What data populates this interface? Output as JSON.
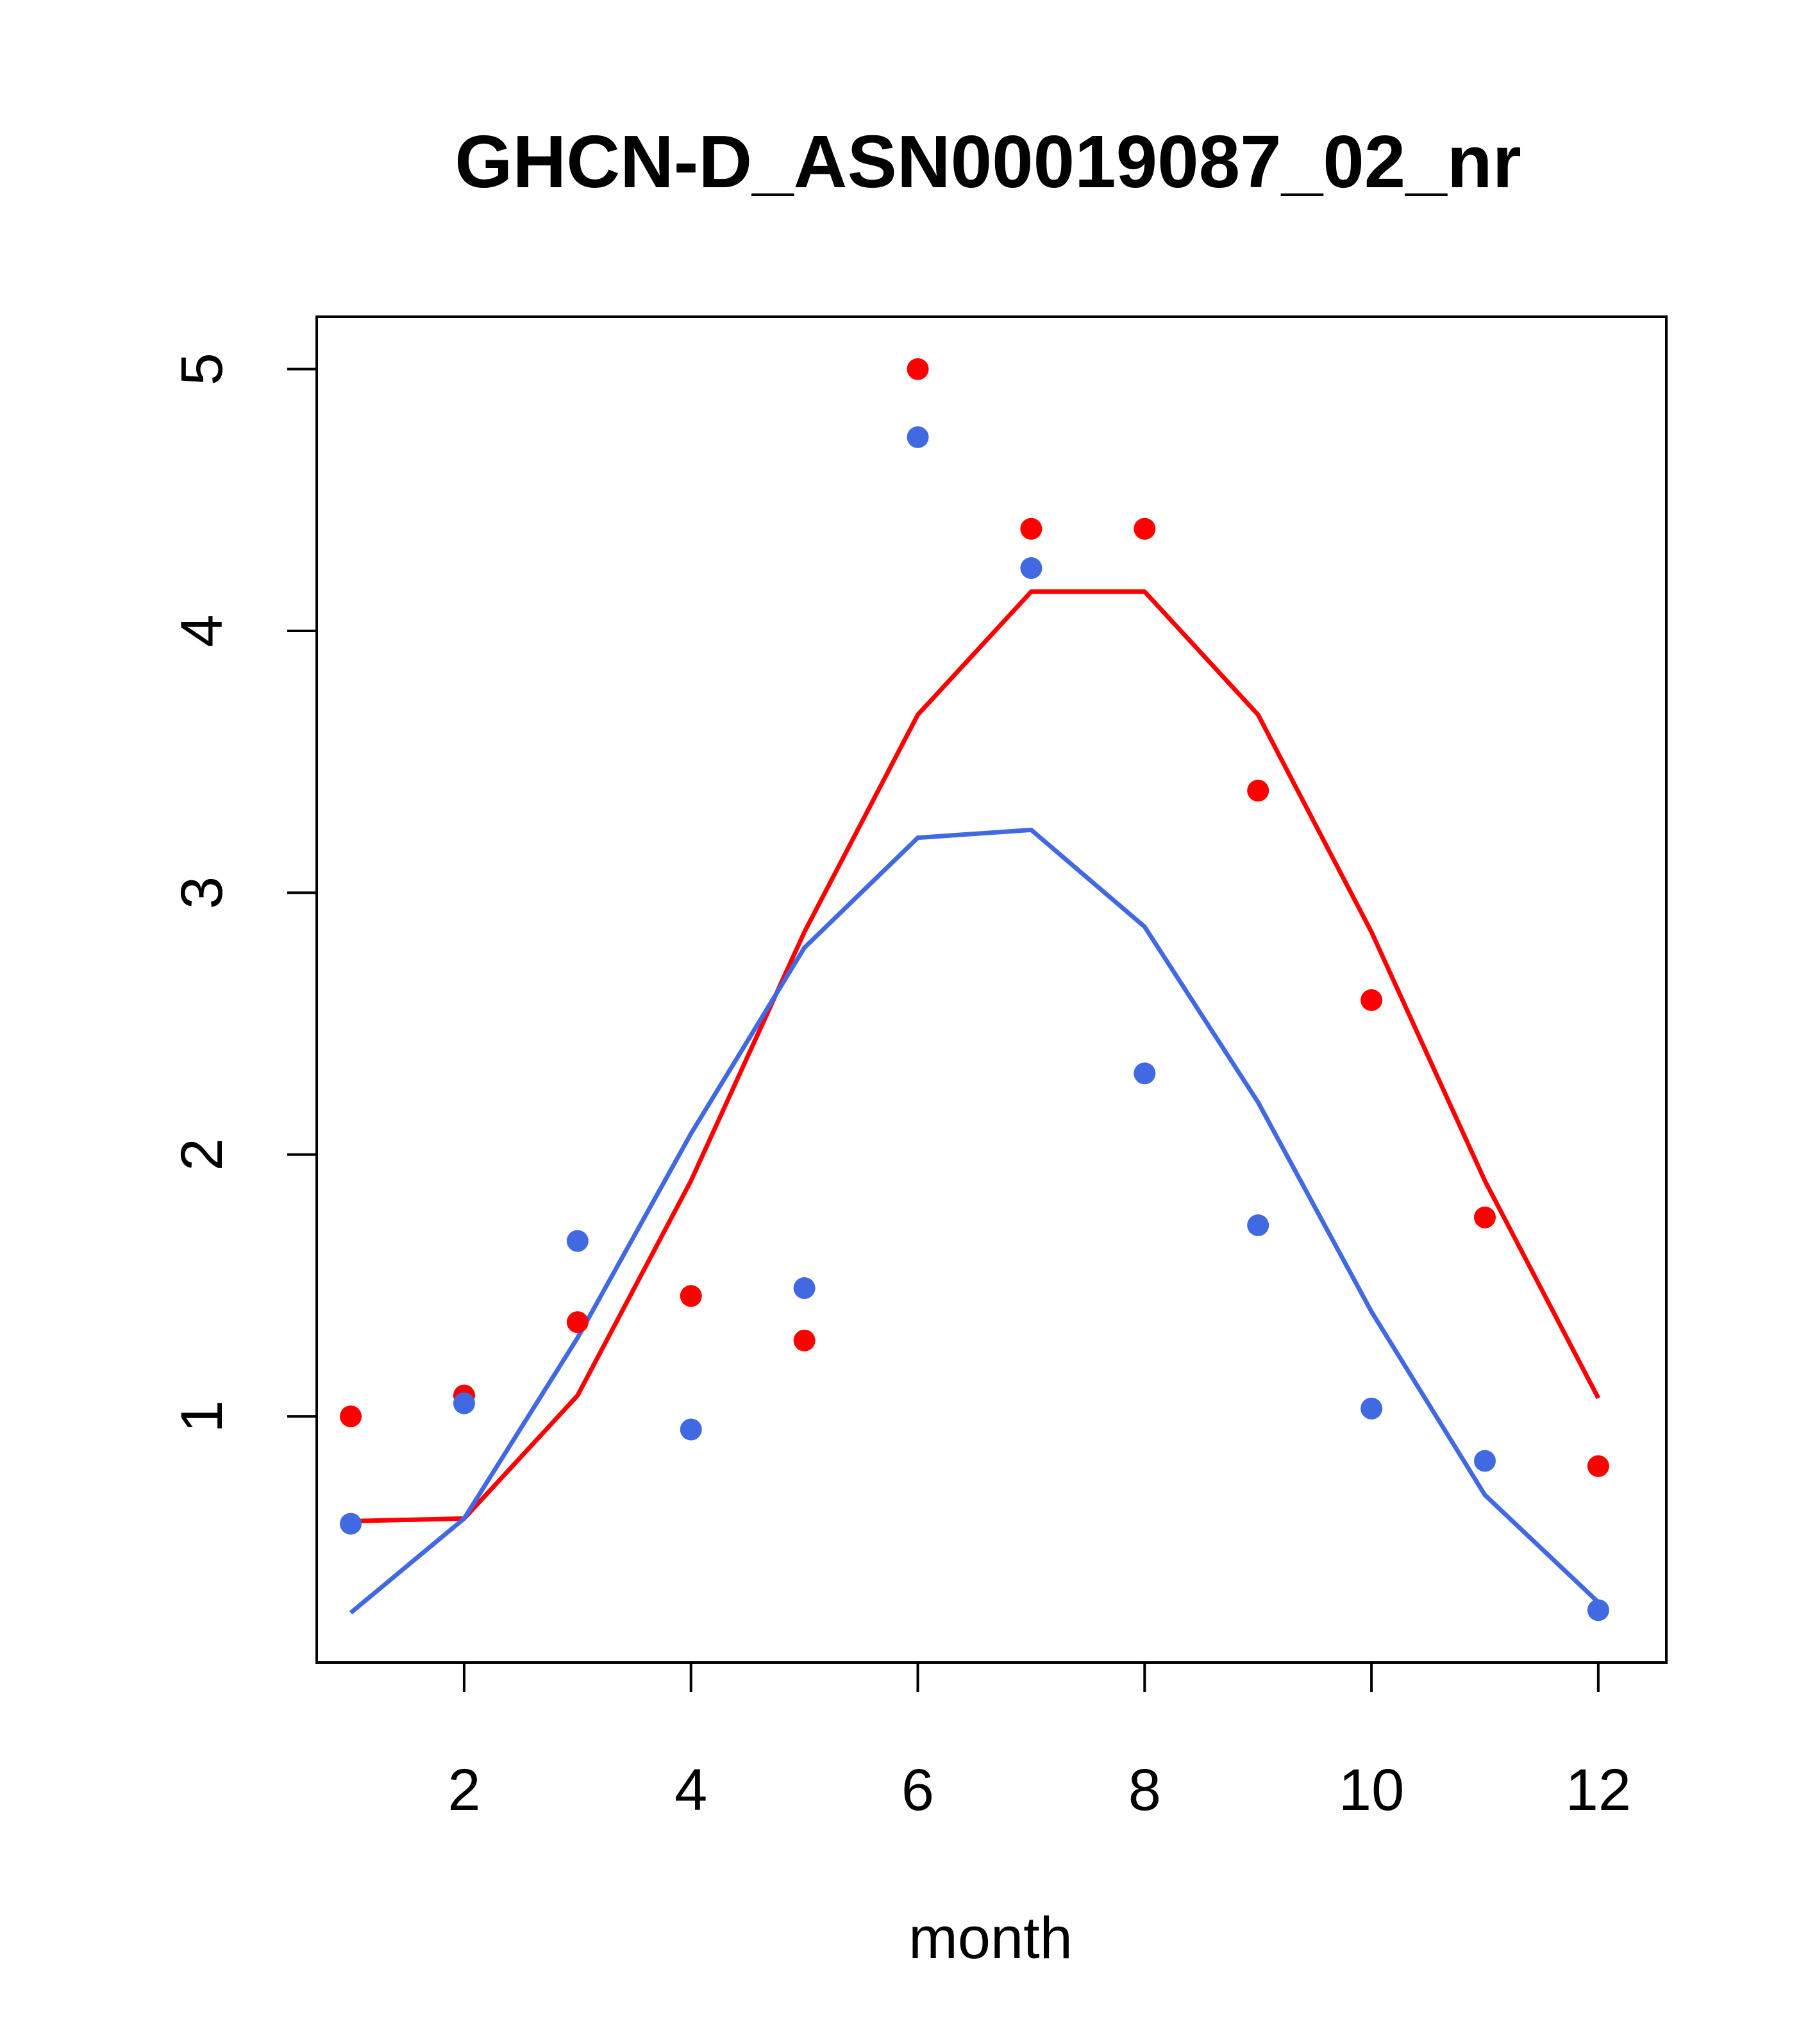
{
  "chart_data": {
    "type": "line",
    "title": "GHCN-D_ASN00019087_02_nr",
    "xlabel": "month",
    "ylabel": "",
    "xlim": [
      0.7,
      12.6
    ],
    "ylim": [
      0.06,
      5.2
    ],
    "xticks": [
      2,
      4,
      6,
      8,
      10,
      12
    ],
    "yticks": [
      1,
      2,
      3,
      4,
      5
    ],
    "grid": false,
    "legend": "none",
    "x": [
      1,
      2,
      3,
      4,
      5,
      6,
      7,
      8,
      9,
      10,
      11,
      12
    ],
    "series": [
      {
        "color": "#ff0000",
        "points": [
          1.0,
          1.08,
          1.36,
          1.46,
          1.29,
          5.0,
          4.39,
          4.39,
          3.39,
          2.59,
          1.76,
          0.81
        ],
        "line": [
          0.6,
          0.61,
          1.08,
          1.9,
          2.85,
          3.68,
          4.15,
          4.15,
          3.68,
          2.85,
          1.9,
          1.07
        ]
      },
      {
        "color": "#4169e1",
        "points": [
          0.59,
          1.05,
          1.67,
          0.95,
          1.49,
          4.74,
          4.24,
          2.31,
          1.73,
          1.03,
          0.83,
          0.26
        ],
        "line": [
          0.25,
          0.61,
          1.3,
          2.08,
          2.79,
          3.21,
          3.24,
          2.87,
          2.2,
          1.4,
          0.7,
          0.29
        ]
      }
    ]
  }
}
